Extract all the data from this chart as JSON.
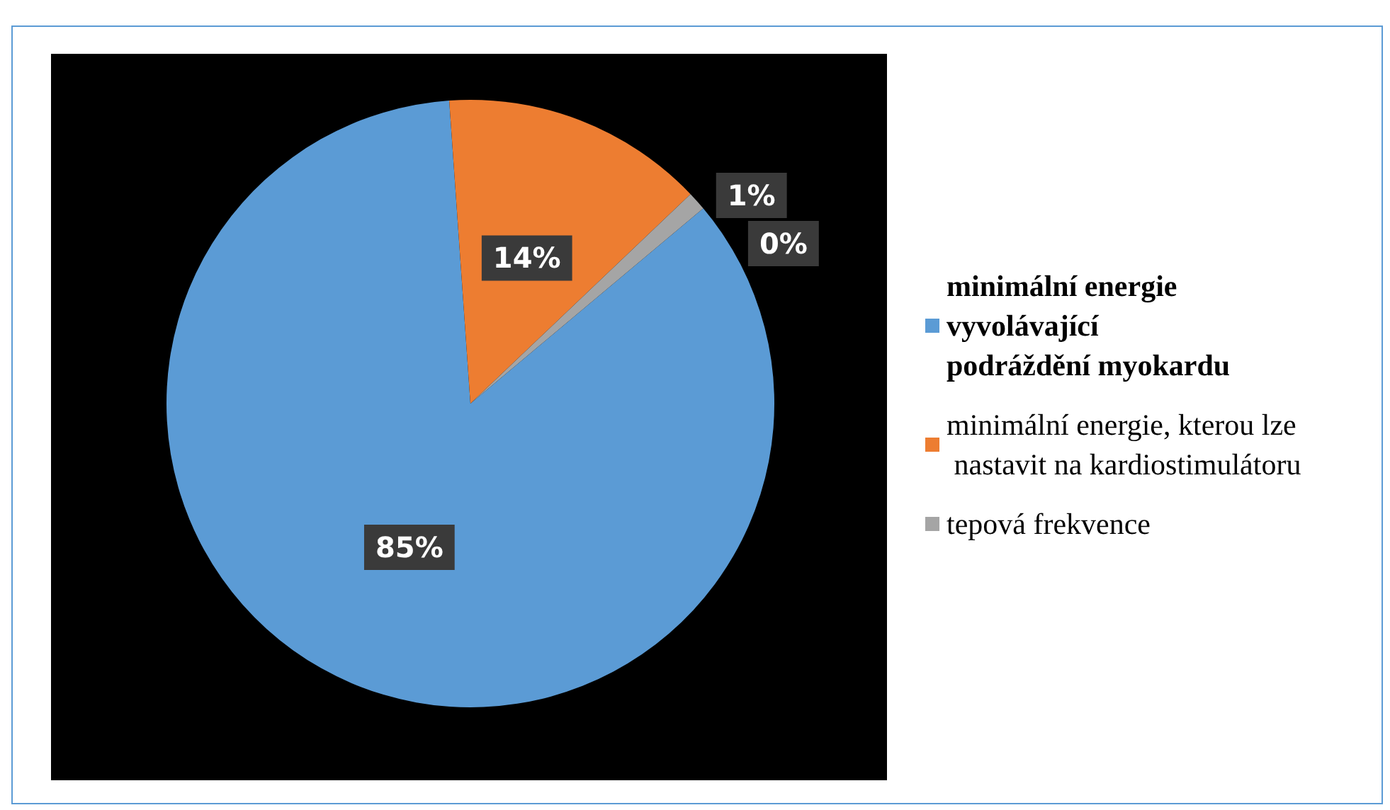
{
  "chart_data": {
    "type": "pie",
    "categories": [
      "minimální energie vyvolávající podráždění myokardu",
      "minimální energie, kterou lze nastavit na kardiostimulátoru",
      "tepová frekvence",
      null
    ],
    "values": [
      85,
      14,
      1,
      0
    ],
    "colors": [
      "#5b9bd5",
      "#ed7d31",
      "#a5a5a5",
      "#ffc000"
    ],
    "value_labels": [
      "85%",
      "14%",
      "1%",
      "0%"
    ],
    "legend": "right"
  }
}
